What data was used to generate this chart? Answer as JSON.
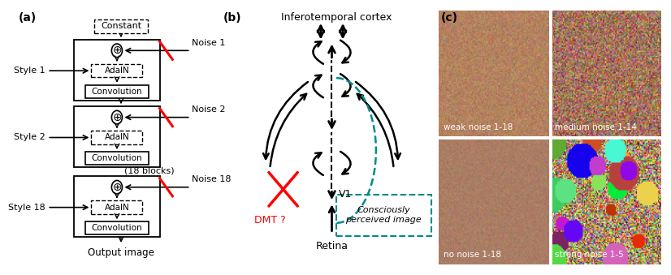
{
  "panel_a_label": "(a)",
  "panel_b_label": "(b)",
  "panel_c_label": "(c)",
  "title_b": "Inferotemporal cortex",
  "label_retina": "Retina",
  "label_v1": "V1",
  "label_dmt": "DMT ?",
  "label_conscious": "Consciously\nperceived image",
  "label_output": "Output image",
  "label_18blocks": "(18 blocks)",
  "label_constant": "Constant",
  "blocks": [
    {
      "style": "Style 1",
      "noise": "Noise 1",
      "adain": "AdaIN",
      "conv": "Convolution"
    },
    {
      "style": "Style 2",
      "noise": "Noise 2",
      "adain": "AdaIN",
      "conv": "Convolution"
    },
    {
      "style": "Style 18",
      "noise": "Noise 18",
      "adain": "AdaIN",
      "conv": "Convolution"
    }
  ],
  "image_labels": [
    "weak noise 1-18",
    "medium noise 1-14",
    "no noise 1-18",
    "strong noise 1-5"
  ],
  "teal_color": "#008B8B",
  "red_color": "#ff0000",
  "bg_color": "#ffffff"
}
